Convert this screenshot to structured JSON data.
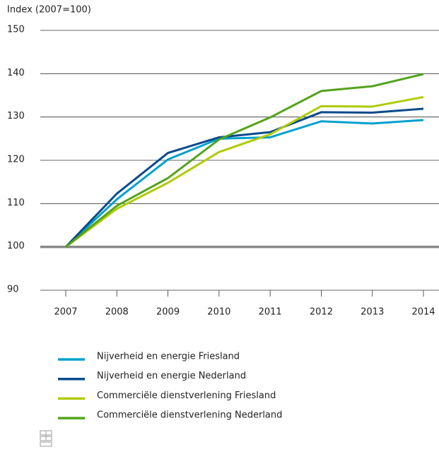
{
  "chart_data": {
    "type": "line",
    "ylabel": "Index (2007=100)",
    "categories": [
      "2007",
      "2008",
      "2009",
      "2010",
      "2011",
      "2012",
      "2013",
      "2014"
    ],
    "series": [
      {
        "name": "Nijverheid en energie Friesland",
        "color": "#00a1cd",
        "values": [
          100,
          111,
          120.2,
          125,
          125.3,
          129,
          128.5,
          129.3
        ]
      },
      {
        "name": "Nijverheid en energie Nederland",
        "color": "#0b4a8c",
        "values": [
          100,
          112.3,
          121.7,
          125.3,
          126.5,
          131.1,
          131,
          131.9
        ]
      },
      {
        "name": "Commerciële dienstverlening Friesland",
        "color": "#afcb05",
        "values": [
          100,
          108.8,
          114.8,
          121.9,
          126,
          132.5,
          132.4,
          134.6
        ]
      },
      {
        "name": "Commerciële dienstverlening Nederland",
        "color": "#53a31d",
        "values": [
          100,
          109.5,
          115.9,
          124.8,
          129.9,
          136,
          137.1,
          139.9
        ]
      }
    ],
    "ylim": [
      90,
      150
    ],
    "yticks": [
      90,
      100,
      110,
      120,
      130,
      140,
      150
    ],
    "reference_line": 100,
    "grid": true
  }
}
